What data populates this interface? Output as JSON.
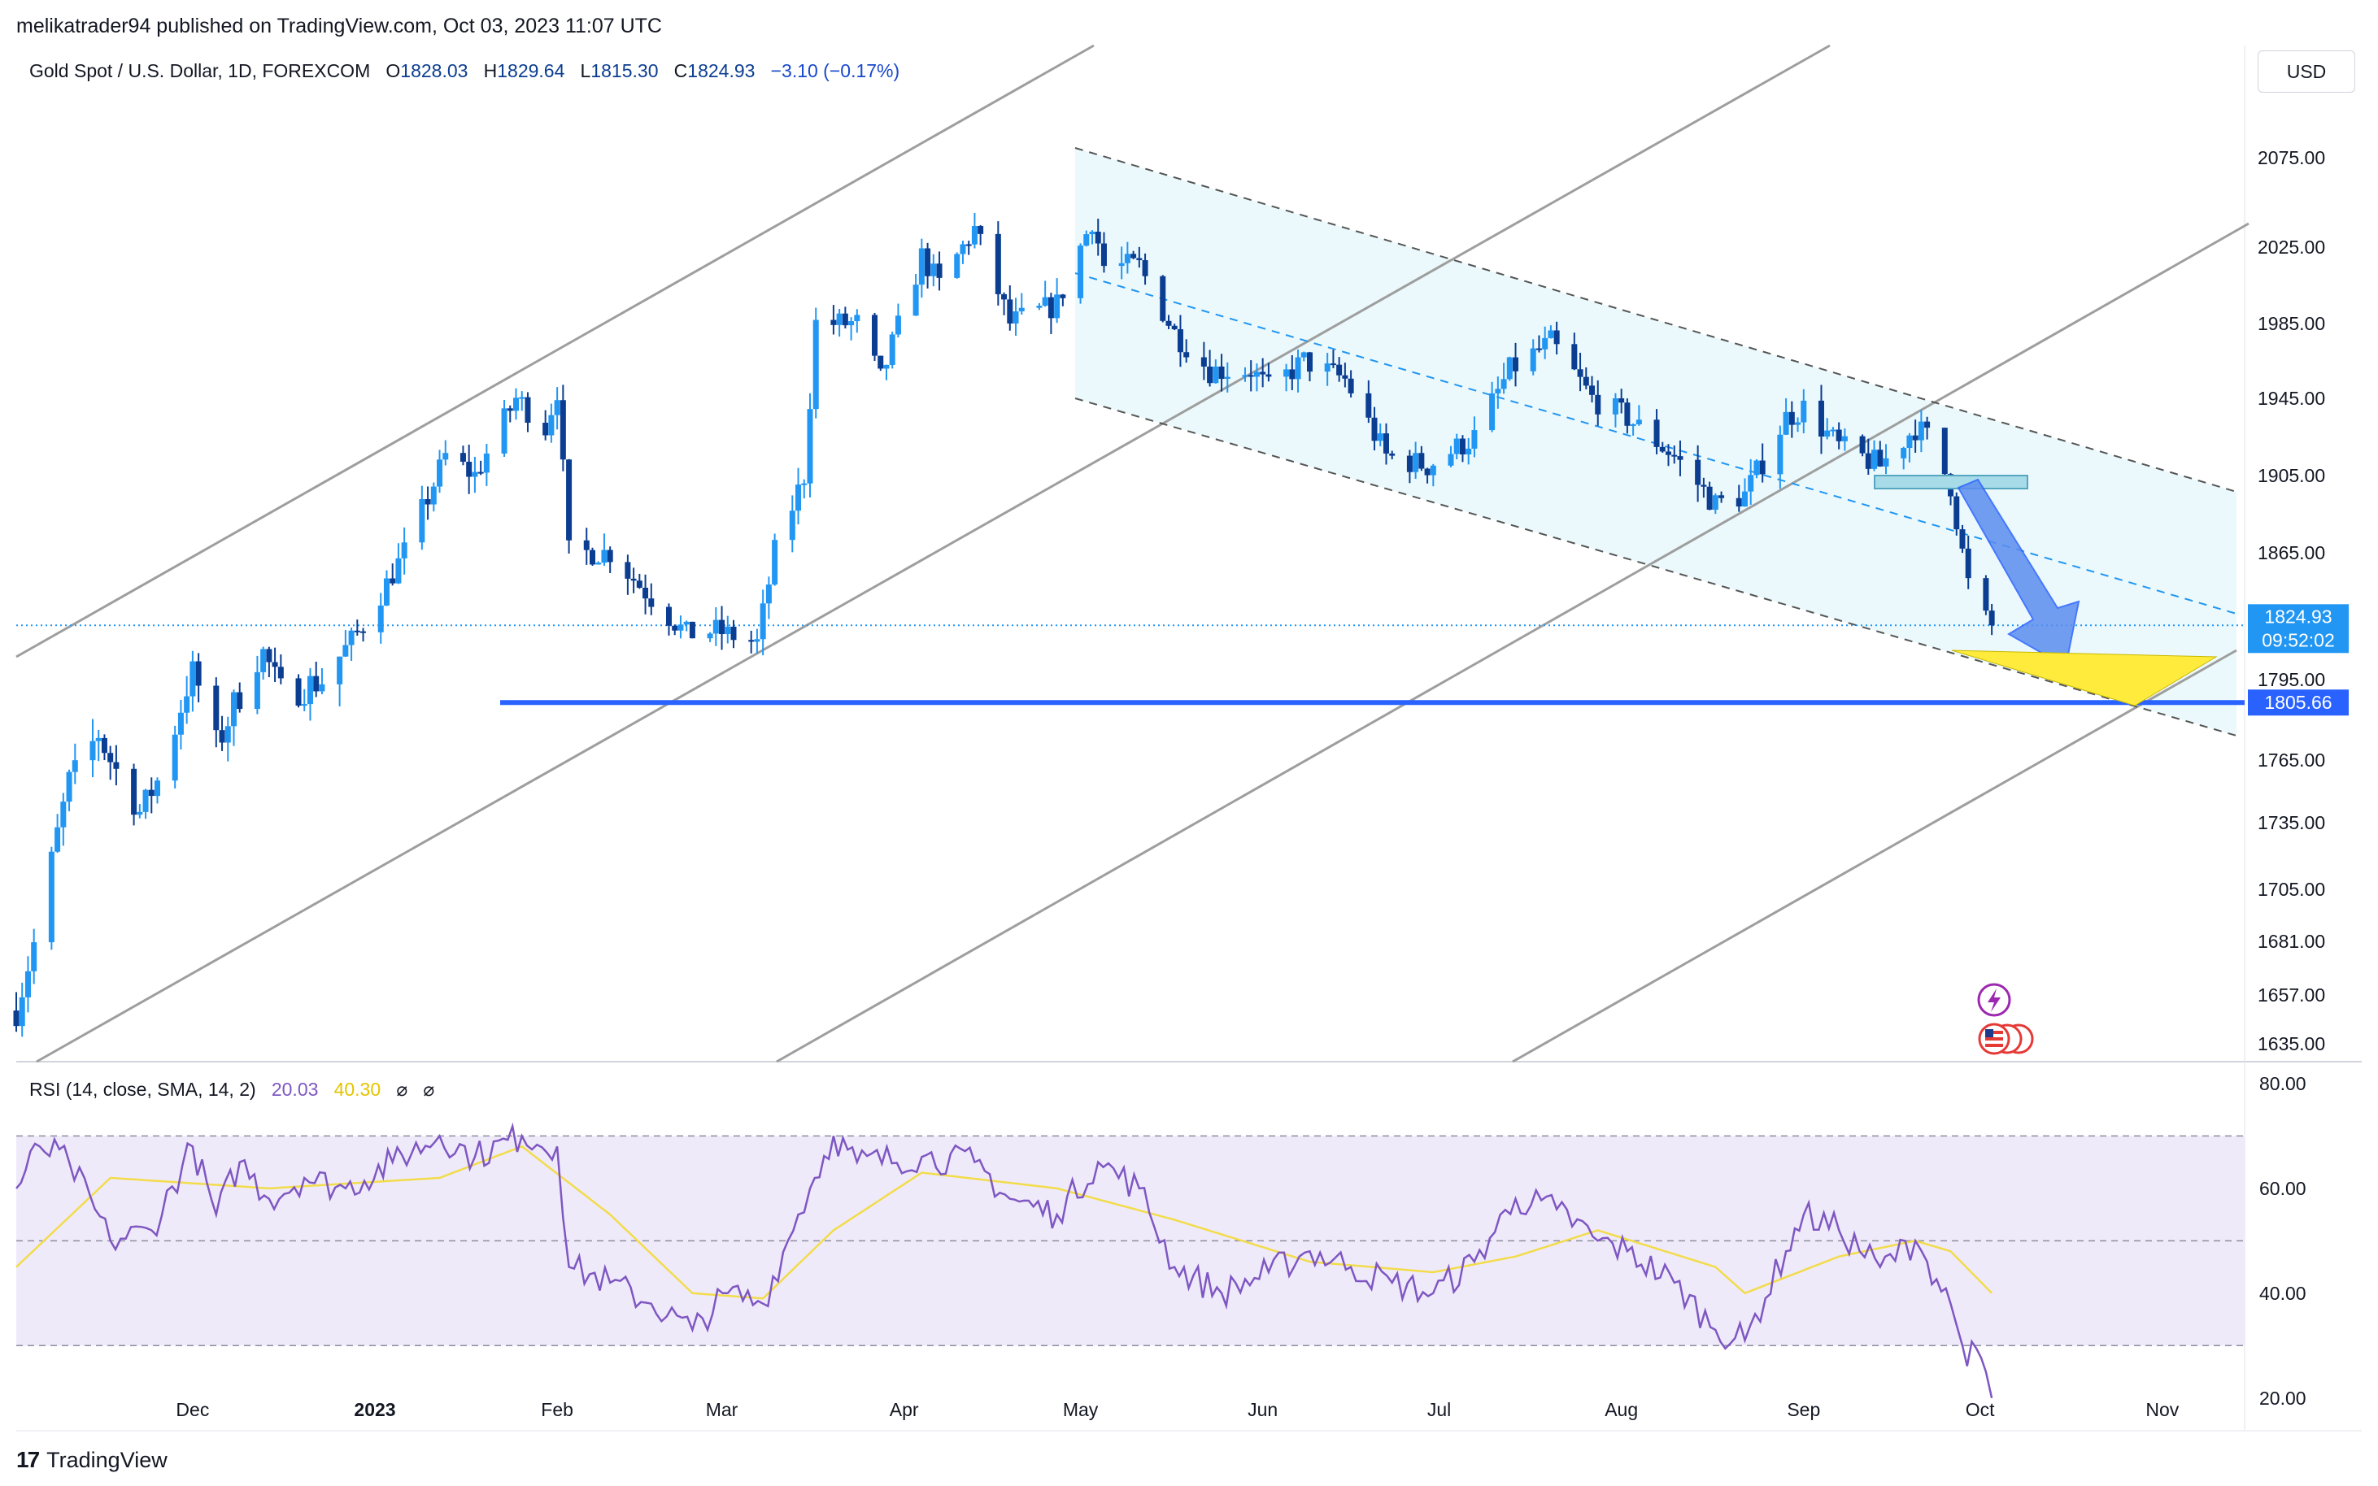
{
  "publisher": "melikatrader94 published on TradingView.com, Oct 03, 2023 11:07 UTC",
  "symbol": {
    "name": "Gold Spot / U.S. Dollar, 1D, FOREXCOM",
    "open_label": "O",
    "open": "1828.03",
    "high_label": "H",
    "high": "1829.64",
    "low_label": "L",
    "low": "1815.30",
    "close_label": "C",
    "close": "1824.93",
    "change": "−3.10 (−0.17%)"
  },
  "currency_button": "USD",
  "price_badges": {
    "last": "1824.93",
    "countdown": "09:52:02",
    "level": "1805.66"
  },
  "colors": {
    "up": "#2196f3",
    "down": "#0b3d91",
    "support_line": "#2962ff",
    "channel_fill": "#e6f7fb",
    "target_fill": "#ffeb3b",
    "rsi_line": "#7e57c2",
    "rsi_ma": "#f2dc4b",
    "rsi_band": "#efeafa"
  },
  "icons": [
    "lightning-icon",
    "us-flag-icon"
  ],
  "rsi": {
    "label": "RSI (14, close, SMA, 14, 2)",
    "value": "20.03",
    "ma_value": "40.30",
    "hidden_1": "⌀",
    "hidden_2": "⌀"
  },
  "brand": "TradingView",
  "chart_data": [
    {
      "type": "candlestick",
      "title": "Gold Spot / U.S. Dollar, 1D, FOREXCOM",
      "y_ticks": [
        2075,
        2025,
        1985,
        1945,
        1905,
        1865,
        1795,
        1765,
        1735,
        1705,
        1681,
        1657,
        1635
      ],
      "y_tick_labels": [
        "2075.00",
        "2025.00",
        "1985.00",
        "1945.00",
        "1905.00",
        "1865.00",
        "1795.00",
        "1765.00",
        "1735.00",
        "1705.00",
        "1681.00",
        "1657.00",
        "1635.00"
      ],
      "x_ticks": [
        "Dec",
        "2023",
        "Feb",
        "Mar",
        "Apr",
        "May",
        "Jun",
        "Jul",
        "Aug",
        "Sep",
        "Oct",
        "Nov"
      ],
      "ylim": [
        1628,
        2105
      ],
      "grid": false,
      "close_waypoints": [
        [
          "2022-11-01",
          1650
        ],
        [
          "2022-11-04",
          1680
        ],
        [
          "2022-11-10",
          1755
        ],
        [
          "2022-11-15",
          1775
        ],
        [
          "2022-11-22",
          1740
        ],
        [
          "2022-11-25",
          1755
        ],
        [
          "2022-12-01",
          1800
        ],
        [
          "2022-12-05",
          1770
        ],
        [
          "2022-12-13",
          1810
        ],
        [
          "2022-12-16",
          1790
        ],
        [
          "2022-12-23",
          1795
        ],
        [
          "2022-12-30",
          1825
        ],
        [
          "2023-01-06",
          1865
        ],
        [
          "2023-01-13",
          1915
        ],
        [
          "2023-01-18",
          1905
        ],
        [
          "2023-01-25",
          1945
        ],
        [
          "2023-01-30",
          1930
        ],
        [
          "2023-02-01",
          1950
        ],
        [
          "2023-02-03",
          1865
        ],
        [
          "2023-02-10",
          1865
        ],
        [
          "2023-02-17",
          1840
        ],
        [
          "2023-02-23",
          1820
        ],
        [
          "2023-02-28",
          1822
        ],
        [
          "2023-03-07",
          1815
        ],
        [
          "2023-03-10",
          1865
        ],
        [
          "2023-03-15",
          1905
        ],
        [
          "2023-03-17",
          1985
        ],
        [
          "2023-03-24",
          1985
        ],
        [
          "2023-03-28",
          1955
        ],
        [
          "2023-04-04",
          2020
        ],
        [
          "2023-04-07",
          2005
        ],
        [
          "2023-04-13",
          2035
        ],
        [
          "2023-04-19",
          1985
        ],
        [
          "2023-04-27",
          1995
        ],
        [
          "2023-05-03",
          2040
        ],
        [
          "2023-05-05",
          2015
        ],
        [
          "2023-05-11",
          2015
        ],
        [
          "2023-05-17",
          1980
        ],
        [
          "2023-05-23",
          1960
        ],
        [
          "2023-05-30",
          1960
        ],
        [
          "2023-06-02",
          1950
        ],
        [
          "2023-06-08",
          1965
        ],
        [
          "2023-06-15",
          1955
        ],
        [
          "2023-06-22",
          1915
        ],
        [
          "2023-06-29",
          1910
        ],
        [
          "2023-07-07",
          1925
        ],
        [
          "2023-07-13",
          1960
        ],
        [
          "2023-07-20",
          1975
        ],
        [
          "2023-07-27",
          1945
        ],
        [
          "2023-08-02",
          1935
        ],
        [
          "2023-08-10",
          1915
        ],
        [
          "2023-08-17",
          1890
        ],
        [
          "2023-08-22",
          1895
        ],
        [
          "2023-08-29",
          1935
        ],
        [
          "2023-09-01",
          1940
        ],
        [
          "2023-09-07",
          1920
        ],
        [
          "2023-09-14",
          1910
        ],
        [
          "2023-09-20",
          1930
        ],
        [
          "2023-09-22",
          1925
        ],
        [
          "2023-09-26",
          1900
        ],
        [
          "2023-09-28",
          1865
        ],
        [
          "2023-09-29",
          1848
        ],
        [
          "2023-10-02",
          1828
        ],
        [
          "2023-10-03",
          1825
        ]
      ],
      "last_close": 1824.93,
      "support_level": 1805.66
    },
    {
      "type": "line",
      "title": "RSI (14, close, SMA, 14, 2)",
      "y_ticks": [
        80,
        60,
        40,
        20
      ],
      "y_tick_labels": [
        "80.00",
        "60.00",
        "40.00",
        "20.00"
      ],
      "bands": [
        30,
        50,
        70
      ],
      "ylim": [
        15,
        82
      ],
      "series": [
        {
          "values": [
            [
              "2022-11-01",
              60
            ],
            [
              "2022-11-05",
              68
            ],
            [
              "2022-11-10",
              65
            ],
            [
              "2022-11-17",
              50
            ],
            [
              "2022-11-24",
              52
            ],
            [
              "2022-12-01",
              68
            ],
            [
              "2022-12-05",
              55
            ],
            [
              "2022-12-09",
              65
            ],
            [
              "2022-12-14",
              58
            ],
            [
              "2022-12-20",
              62
            ],
            [
              "2022-12-27",
              60
            ],
            [
              "2023-01-04",
              65
            ],
            [
              "2023-01-12",
              70
            ],
            [
              "2023-01-18",
              66
            ],
            [
              "2023-01-26",
              70
            ],
            [
              "2023-02-01",
              68
            ],
            [
              "2023-02-03",
              45
            ],
            [
              "2023-02-10",
              42
            ],
            [
              "2023-02-17",
              38
            ],
            [
              "2023-02-24",
              33
            ],
            [
              "2023-03-02",
              40
            ],
            [
              "2023-03-08",
              38
            ],
            [
              "2023-03-14",
              55
            ],
            [
              "2023-03-16",
              60
            ],
            [
              "2023-03-20",
              70
            ],
            [
              "2023-03-24",
              65
            ],
            [
              "2023-04-04",
              66
            ],
            [
              "2023-04-13",
              65
            ],
            [
              "2023-04-19",
              58
            ],
            [
              "2023-04-27",
              55
            ],
            [
              "2023-05-04",
              65
            ],
            [
              "2023-05-11",
              60
            ],
            [
              "2023-05-17",
              45
            ],
            [
              "2023-05-25",
              40
            ],
            [
              "2023-06-02",
              44
            ],
            [
              "2023-06-09",
              48
            ],
            [
              "2023-06-16",
              45
            ],
            [
              "2023-06-23",
              42
            ],
            [
              "2023-06-30",
              40
            ],
            [
              "2023-07-07",
              46
            ],
            [
              "2023-07-14",
              58
            ],
            [
              "2023-07-21",
              56
            ],
            [
              "2023-07-28",
              50
            ],
            [
              "2023-08-02",
              48
            ],
            [
              "2023-08-10",
              42
            ],
            [
              "2023-08-17",
              33
            ],
            [
              "2023-08-22",
              31
            ],
            [
              "2023-08-29",
              48
            ],
            [
              "2023-09-01",
              55
            ],
            [
              "2023-09-07",
              52
            ],
            [
              "2023-09-14",
              45
            ],
            [
              "2023-09-20",
              50
            ],
            [
              "2023-09-22",
              46
            ],
            [
              "2023-09-26",
              38
            ],
            [
              "2023-09-28",
              30
            ],
            [
              "2023-10-02",
              25
            ],
            [
              "2023-10-03",
              20
            ]
          ]
        },
        {
          "values": [
            [
              "2022-11-01",
              45
            ],
            [
              "2022-11-17",
              62
            ],
            [
              "2022-12-14",
              60
            ],
            [
              "2023-01-12",
              62
            ],
            [
              "2023-01-26",
              68
            ],
            [
              "2023-02-10",
              55
            ],
            [
              "2023-02-24",
              40
            ],
            [
              "2023-03-08",
              39
            ],
            [
              "2023-03-20",
              52
            ],
            [
              "2023-04-04",
              63
            ],
            [
              "2023-04-27",
              60
            ],
            [
              "2023-05-17",
              54
            ],
            [
              "2023-06-09",
              46
            ],
            [
              "2023-06-30",
              44
            ],
            [
              "2023-07-14",
              47
            ],
            [
              "2023-07-28",
              52
            ],
            [
              "2023-08-17",
              45
            ],
            [
              "2023-08-22",
              40
            ],
            [
              "2023-09-07",
              47
            ],
            [
              "2023-09-20",
              50
            ],
            [
              "2023-09-26",
              48
            ],
            [
              "2023-10-03",
              40
            ]
          ]
        }
      ]
    }
  ]
}
